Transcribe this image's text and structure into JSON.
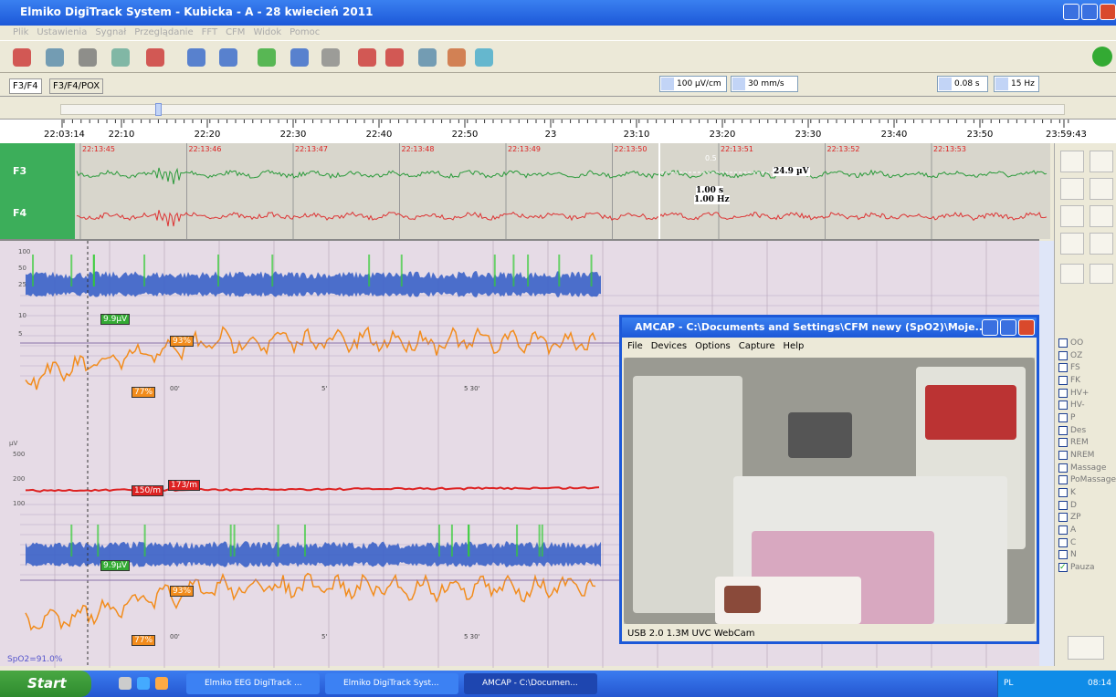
{
  "title_bar": {
    "title": "Elmiko DigiTrack System  -  Kubicka  -  A  -  28 kwiecień 2011"
  },
  "menu": [
    "Plik",
    "Ustawienia",
    "Sygnał",
    "Przeglądanie",
    "FFT",
    "CFM",
    "Widok",
    "Pomoc"
  ],
  "tabs": [
    "F3/F4",
    "F3/F4/POX"
  ],
  "settings": {
    "sensitivity": "100 µV/cm",
    "speed": "30 mm/s",
    "time_constant": "0.08 s",
    "filter": "15 Hz"
  },
  "time_ruler": [
    "22:03:14",
    "22:10",
    "22:20",
    "22:30",
    "22:40",
    "22:50",
    "23",
    "23:10",
    "23:20",
    "23:30",
    "23:40",
    "23:50",
    "23:59:43"
  ],
  "eeg": {
    "channels": [
      "F3",
      "F4"
    ],
    "times": [
      "22:13:45",
      "22:13:46",
      "22:13:47",
      "22:13:48",
      "22:13:49",
      "22:13:50",
      "22:13:51",
      "22:13:52",
      "22:13:53"
    ],
    "cursor": {
      "amplitude": "24.9 µV",
      "duration": "1.00 s",
      "frequency": "1.00 Hz",
      "scale": "0.5"
    }
  },
  "cfm": {
    "scale_top": [
      "100",
      "50",
      "25",
      "10",
      "5"
    ],
    "unit": "µV",
    "scale_bottom": [
      "500",
      "200",
      "100"
    ],
    "labels": {
      "amp1": "9.9µV",
      "spo2_high1": "93%",
      "spo2_low1": "77%",
      "hr1": "150/m",
      "hr2": "173/m",
      "amp2": "9.9µV",
      "spo2_high2": "93%",
      "spo2_low2": "77%",
      "spo2": "SpO2=91.0%"
    },
    "time_axis": [
      "00'",
      "5'",
      "5 30'"
    ]
  },
  "markers": [
    "OO",
    "OZ",
    "FS",
    "FK",
    "HV+",
    "HV-",
    "P",
    "Des",
    "REM",
    "NREM",
    "Massage",
    "PoMassage",
    "K",
    "D",
    "ZP",
    "A",
    "C",
    "N",
    "Pauza"
  ],
  "amcap": {
    "title": "AMCAP - C:\\Documents and Settings\\CFM newy (SpO2)\\Moje...",
    "menu": [
      "File",
      "Devices",
      "Options",
      "Capture",
      "Help"
    ],
    "status": "USB 2.0 1.3M UVC WebCam"
  },
  "taskbar": {
    "start": "Start",
    "items": [
      "Elmiko EEG DigiTrack ...",
      "Elmiko DigiTrack Syst...",
      "AMCAP - C:\\Documen..."
    ],
    "lang": "PL",
    "clock": "08:14"
  }
}
